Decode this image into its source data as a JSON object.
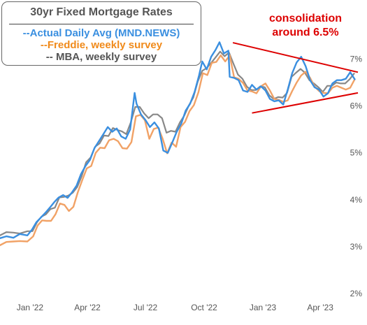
{
  "legend": {
    "title": "30yr Fixed Mortgage Rates",
    "items": [
      {
        "label": "--Actual Daily Avg (MND.NEWS)",
        "color": "#3a8fe0"
      },
      {
        "label": "--Freddie, weekly survey",
        "color": "#f08a1a"
      },
      {
        "label": "-- MBA, weekly survey",
        "color": "#555555"
      }
    ]
  },
  "annotation": {
    "line1": "consolidation",
    "line2": "around 6.5%",
    "color": "#dd0000"
  },
  "chart_data": {
    "type": "line",
    "title": "30yr Fixed Mortgage Rates",
    "xlabel": "",
    "ylabel": "",
    "x_ticks": [
      "Jan '22",
      "Apr '22",
      "Jul '22",
      "Oct '22",
      "Jan '23",
      "Apr '23"
    ],
    "y_ticks": [
      "2%",
      "3%",
      "4%",
      "5%",
      "6%",
      "7%"
    ],
    "ylim": [
      2,
      7.5
    ],
    "xlim": [
      "2021-11-15",
      "2023-05-30"
    ],
    "grid": false,
    "legend_position": "top-left",
    "series": [
      {
        "name": "Actual Daily Avg (MND.NEWS)",
        "color": "#3a8fe0",
        "width": 2.4,
        "points": [
          [
            "2021-11-15",
            3.18
          ],
          [
            "2021-11-25",
            3.22
          ],
          [
            "2021-12-06",
            3.19
          ],
          [
            "2021-12-16",
            3.27
          ],
          [
            "2021-12-28",
            3.24
          ],
          [
            "2022-01-04",
            3.36
          ],
          [
            "2022-01-11",
            3.52
          ],
          [
            "2022-01-18",
            3.62
          ],
          [
            "2022-01-25",
            3.72
          ],
          [
            "2022-02-01",
            3.83
          ],
          [
            "2022-02-08",
            3.95
          ],
          [
            "2022-02-15",
            4.05
          ],
          [
            "2022-02-22",
            4.1
          ],
          [
            "2022-03-01",
            4.04
          ],
          [
            "2022-03-08",
            4.16
          ],
          [
            "2022-03-15",
            4.3
          ],
          [
            "2022-03-22",
            4.55
          ],
          [
            "2022-03-29",
            4.72
          ],
          [
            "2022-04-05",
            4.85
          ],
          [
            "2022-04-12",
            5.1
          ],
          [
            "2022-04-19",
            5.25
          ],
          [
            "2022-04-26",
            5.4
          ],
          [
            "2022-05-03",
            5.55
          ],
          [
            "2022-05-10",
            5.45
          ],
          [
            "2022-05-17",
            5.52
          ],
          [
            "2022-05-24",
            5.35
          ],
          [
            "2022-05-31",
            5.3
          ],
          [
            "2022-06-07",
            5.5
          ],
          [
            "2022-06-14",
            6.28
          ],
          [
            "2022-06-17",
            6.05
          ],
          [
            "2022-06-24",
            5.82
          ],
          [
            "2022-07-01",
            5.7
          ],
          [
            "2022-07-08",
            5.55
          ],
          [
            "2022-07-15",
            5.65
          ],
          [
            "2022-07-22",
            5.52
          ],
          [
            "2022-07-29",
            5.05
          ],
          [
            "2022-08-05",
            5.0
          ],
          [
            "2022-08-12",
            5.22
          ],
          [
            "2022-08-19",
            5.45
          ],
          [
            "2022-08-26",
            5.62
          ],
          [
            "2022-09-02",
            5.9
          ],
          [
            "2022-09-09",
            6.05
          ],
          [
            "2022-09-16",
            6.3
          ],
          [
            "2022-09-23",
            6.65
          ],
          [
            "2022-09-28",
            6.95
          ],
          [
            "2022-10-05",
            6.78
          ],
          [
            "2022-10-12",
            7.05
          ],
          [
            "2022-10-19",
            7.2
          ],
          [
            "2022-10-25",
            7.36
          ],
          [
            "2022-11-01",
            7.12
          ],
          [
            "2022-11-08",
            7.18
          ],
          [
            "2022-11-10",
            6.62
          ],
          [
            "2022-11-17",
            6.6
          ],
          [
            "2022-11-24",
            6.55
          ],
          [
            "2022-12-01",
            6.33
          ],
          [
            "2022-12-08",
            6.3
          ],
          [
            "2022-12-15",
            6.45
          ],
          [
            "2022-12-22",
            6.35
          ],
          [
            "2022-12-29",
            6.42
          ],
          [
            "2023-01-05",
            6.33
          ],
          [
            "2023-01-12",
            6.15
          ],
          [
            "2023-01-19",
            6.1
          ],
          [
            "2023-01-26",
            6.12
          ],
          [
            "2023-02-02",
            6.03
          ],
          [
            "2023-02-09",
            6.35
          ],
          [
            "2023-02-16",
            6.7
          ],
          [
            "2023-02-23",
            6.93
          ],
          [
            "2023-03-02",
            7.05
          ],
          [
            "2023-03-09",
            6.85
          ],
          [
            "2023-03-16",
            6.55
          ],
          [
            "2023-03-23",
            6.4
          ],
          [
            "2023-03-30",
            6.35
          ],
          [
            "2023-04-06",
            6.2
          ],
          [
            "2023-04-13",
            6.27
          ],
          [
            "2023-04-20",
            6.48
          ],
          [
            "2023-04-27",
            6.55
          ],
          [
            "2023-05-04",
            6.55
          ],
          [
            "2023-05-11",
            6.58
          ],
          [
            "2023-05-18",
            6.72
          ],
          [
            "2023-05-25",
            6.57
          ]
        ]
      },
      {
        "name": "Freddie, weekly survey",
        "color": "#f1a266",
        "width": 2.4,
        "points": [
          [
            "2021-11-15",
            3.03
          ],
          [
            "2021-11-25",
            3.1
          ],
          [
            "2021-12-06",
            3.11
          ],
          [
            "2021-12-16",
            3.12
          ],
          [
            "2021-12-28",
            3.11
          ],
          [
            "2022-01-06",
            3.22
          ],
          [
            "2022-01-13",
            3.45
          ],
          [
            "2022-01-20",
            3.56
          ],
          [
            "2022-01-27",
            3.55
          ],
          [
            "2022-02-03",
            3.55
          ],
          [
            "2022-02-10",
            3.69
          ],
          [
            "2022-02-17",
            3.92
          ],
          [
            "2022-02-24",
            3.89
          ],
          [
            "2022-03-03",
            3.76
          ],
          [
            "2022-03-10",
            3.85
          ],
          [
            "2022-03-17",
            4.16
          ],
          [
            "2022-03-24",
            4.42
          ],
          [
            "2022-03-31",
            4.67
          ],
          [
            "2022-04-07",
            4.72
          ],
          [
            "2022-04-14",
            5.0
          ],
          [
            "2022-04-21",
            5.11
          ],
          [
            "2022-04-28",
            5.1
          ],
          [
            "2022-05-05",
            5.27
          ],
          [
            "2022-05-12",
            5.3
          ],
          [
            "2022-05-19",
            5.25
          ],
          [
            "2022-05-26",
            5.1
          ],
          [
            "2022-06-02",
            5.09
          ],
          [
            "2022-06-09",
            5.23
          ],
          [
            "2022-06-16",
            5.78
          ],
          [
            "2022-06-23",
            5.81
          ],
          [
            "2022-06-30",
            5.7
          ],
          [
            "2022-07-07",
            5.3
          ],
          [
            "2022-07-14",
            5.51
          ],
          [
            "2022-07-21",
            5.54
          ],
          [
            "2022-07-28",
            5.3
          ],
          [
            "2022-08-04",
            4.99
          ],
          [
            "2022-08-11",
            5.22
          ],
          [
            "2022-08-18",
            5.13
          ],
          [
            "2022-08-25",
            5.55
          ],
          [
            "2022-09-01",
            5.66
          ],
          [
            "2022-09-08",
            5.89
          ],
          [
            "2022-09-15",
            6.02
          ],
          [
            "2022-09-22",
            6.29
          ],
          [
            "2022-09-29",
            6.7
          ],
          [
            "2022-10-06",
            6.66
          ],
          [
            "2022-10-13",
            6.92
          ],
          [
            "2022-10-20",
            6.94
          ],
          [
            "2022-10-27",
            7.08
          ],
          [
            "2022-11-03",
            6.95
          ],
          [
            "2022-11-10",
            7.08
          ],
          [
            "2022-11-17",
            6.61
          ],
          [
            "2022-11-24",
            6.58
          ],
          [
            "2022-12-01",
            6.49
          ],
          [
            "2022-12-08",
            6.33
          ],
          [
            "2022-12-15",
            6.31
          ],
          [
            "2022-12-22",
            6.27
          ],
          [
            "2022-12-29",
            6.42
          ],
          [
            "2023-01-05",
            6.48
          ],
          [
            "2023-01-12",
            6.33
          ],
          [
            "2023-01-19",
            6.15
          ],
          [
            "2023-01-26",
            6.13
          ],
          [
            "2023-02-02",
            6.09
          ],
          [
            "2023-02-09",
            6.12
          ],
          [
            "2023-02-16",
            6.32
          ],
          [
            "2023-02-23",
            6.5
          ],
          [
            "2023-03-02",
            6.65
          ],
          [
            "2023-03-09",
            6.73
          ],
          [
            "2023-03-16",
            6.6
          ],
          [
            "2023-03-23",
            6.42
          ],
          [
            "2023-03-30",
            6.32
          ],
          [
            "2023-04-06",
            6.28
          ],
          [
            "2023-04-13",
            6.27
          ],
          [
            "2023-04-20",
            6.39
          ],
          [
            "2023-04-27",
            6.43
          ],
          [
            "2023-05-04",
            6.39
          ],
          [
            "2023-05-11",
            6.35
          ],
          [
            "2023-05-18",
            6.39
          ],
          [
            "2023-05-25",
            6.57
          ]
        ]
      },
      {
        "name": "MBA, weekly survey",
        "color": "#888888",
        "width": 2.2,
        "points": [
          [
            "2021-11-15",
            3.24
          ],
          [
            "2021-11-25",
            3.31
          ],
          [
            "2021-12-06",
            3.3
          ],
          [
            "2021-12-16",
            3.28
          ],
          [
            "2021-12-28",
            3.33
          ],
          [
            "2022-01-05",
            3.33
          ],
          [
            "2022-01-12",
            3.52
          ],
          [
            "2022-01-19",
            3.64
          ],
          [
            "2022-01-26",
            3.69
          ],
          [
            "2022-02-02",
            3.8
          ],
          [
            "2022-02-09",
            3.83
          ],
          [
            "2022-02-16",
            4.05
          ],
          [
            "2022-02-23",
            4.06
          ],
          [
            "2022-03-02",
            4.09
          ],
          [
            "2022-03-09",
            4.15
          ],
          [
            "2022-03-16",
            4.27
          ],
          [
            "2022-03-23",
            4.5
          ],
          [
            "2022-03-30",
            4.8
          ],
          [
            "2022-04-06",
            4.9
          ],
          [
            "2022-04-13",
            5.13
          ],
          [
            "2022-04-20",
            5.2
          ],
          [
            "2022-04-27",
            5.37
          ],
          [
            "2022-05-04",
            5.36
          ],
          [
            "2022-05-11",
            5.53
          ],
          [
            "2022-05-18",
            5.49
          ],
          [
            "2022-05-25",
            5.46
          ],
          [
            "2022-06-01",
            5.4
          ],
          [
            "2022-06-08",
            5.65
          ],
          [
            "2022-06-15",
            5.98
          ],
          [
            "2022-06-22",
            5.98
          ],
          [
            "2022-06-29",
            5.84
          ],
          [
            "2022-07-06",
            5.74
          ],
          [
            "2022-07-13",
            5.82
          ],
          [
            "2022-07-20",
            5.82
          ],
          [
            "2022-07-27",
            5.74
          ],
          [
            "2022-08-03",
            5.43
          ],
          [
            "2022-08-10",
            5.47
          ],
          [
            "2022-08-17",
            5.45
          ],
          [
            "2022-08-24",
            5.65
          ],
          [
            "2022-08-31",
            5.8
          ],
          [
            "2022-09-07",
            6.01
          ],
          [
            "2022-09-14",
            6.18
          ],
          [
            "2022-09-21",
            6.52
          ],
          [
            "2022-09-28",
            6.75
          ],
          [
            "2022-10-05",
            6.81
          ],
          [
            "2022-10-12",
            6.92
          ],
          [
            "2022-10-19",
            7.04
          ],
          [
            "2022-10-26",
            7.16
          ],
          [
            "2022-11-02",
            7.06
          ],
          [
            "2022-11-09",
            7.14
          ],
          [
            "2022-11-16",
            6.9
          ],
          [
            "2022-11-23",
            6.67
          ],
          [
            "2022-11-30",
            6.58
          ],
          [
            "2022-12-07",
            6.41
          ],
          [
            "2022-12-14",
            6.34
          ],
          [
            "2022-12-21",
            6.34
          ],
          [
            "2022-12-28",
            6.42
          ],
          [
            "2023-01-04",
            6.4
          ],
          [
            "2023-01-11",
            6.23
          ],
          [
            "2023-01-18",
            6.15
          ],
          [
            "2023-01-25",
            6.19
          ],
          [
            "2023-02-01",
            6.18
          ],
          [
            "2023-02-08",
            6.28
          ],
          [
            "2023-02-15",
            6.62
          ],
          [
            "2023-02-22",
            6.71
          ],
          [
            "2023-03-01",
            6.79
          ],
          [
            "2023-03-08",
            6.71
          ],
          [
            "2023-03-15",
            6.55
          ],
          [
            "2023-03-22",
            6.48
          ],
          [
            "2023-03-29",
            6.4
          ],
          [
            "2023-04-05",
            6.3
          ],
          [
            "2023-04-12",
            6.43
          ],
          [
            "2023-04-19",
            6.43
          ],
          [
            "2023-04-26",
            6.5
          ],
          [
            "2023-05-03",
            6.48
          ],
          [
            "2023-05-10",
            6.48
          ],
          [
            "2023-05-17",
            6.57
          ],
          [
            "2023-05-24",
            6.69
          ]
        ]
      }
    ],
    "trendlines": [
      {
        "name": "upper",
        "color": "#dd0000",
        "from": [
          "2022-11-15",
          7.35
        ],
        "to": [
          "2023-05-30",
          6.72
        ]
      },
      {
        "name": "lower",
        "color": "#dd0000",
        "from": [
          "2022-12-15",
          5.85
        ],
        "to": [
          "2023-05-30",
          6.28
        ]
      }
    ]
  }
}
